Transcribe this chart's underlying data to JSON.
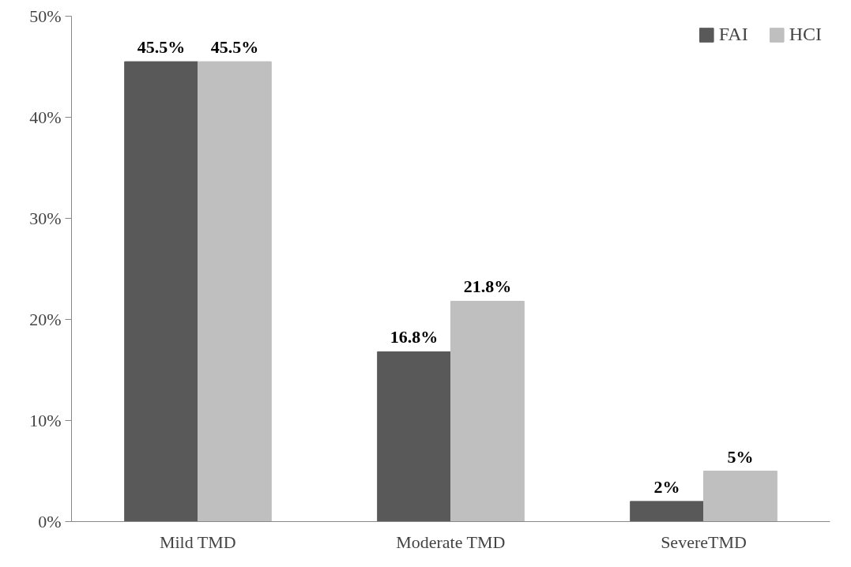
{
  "chart_data": {
    "type": "bar",
    "categories": [
      "Mild TMD",
      "Moderate TMD",
      "SevereTMD"
    ],
    "series": [
      {
        "name": "FAI",
        "color": "#595959",
        "values": [
          45.5,
          16.8,
          2
        ],
        "value_labels": [
          "45.5%",
          "16.8%",
          "2%"
        ]
      },
      {
        "name": "HCI",
        "color": "#bfbfbf",
        "values": [
          45.5,
          21.8,
          5
        ],
        "value_labels": [
          "45.5%",
          "21.8%",
          "5%"
        ]
      }
    ],
    "ylim": [
      0,
      50
    ],
    "yticks": [
      {
        "value": 0,
        "label": "0%"
      },
      {
        "value": 10,
        "label": "10%"
      },
      {
        "value": 20,
        "label": "20%"
      },
      {
        "value": 30,
        "label": "30%"
      },
      {
        "value": 40,
        "label": "40%"
      },
      {
        "value": 50,
        "label": "50%"
      }
    ],
    "grid": false,
    "legend": "top right"
  }
}
